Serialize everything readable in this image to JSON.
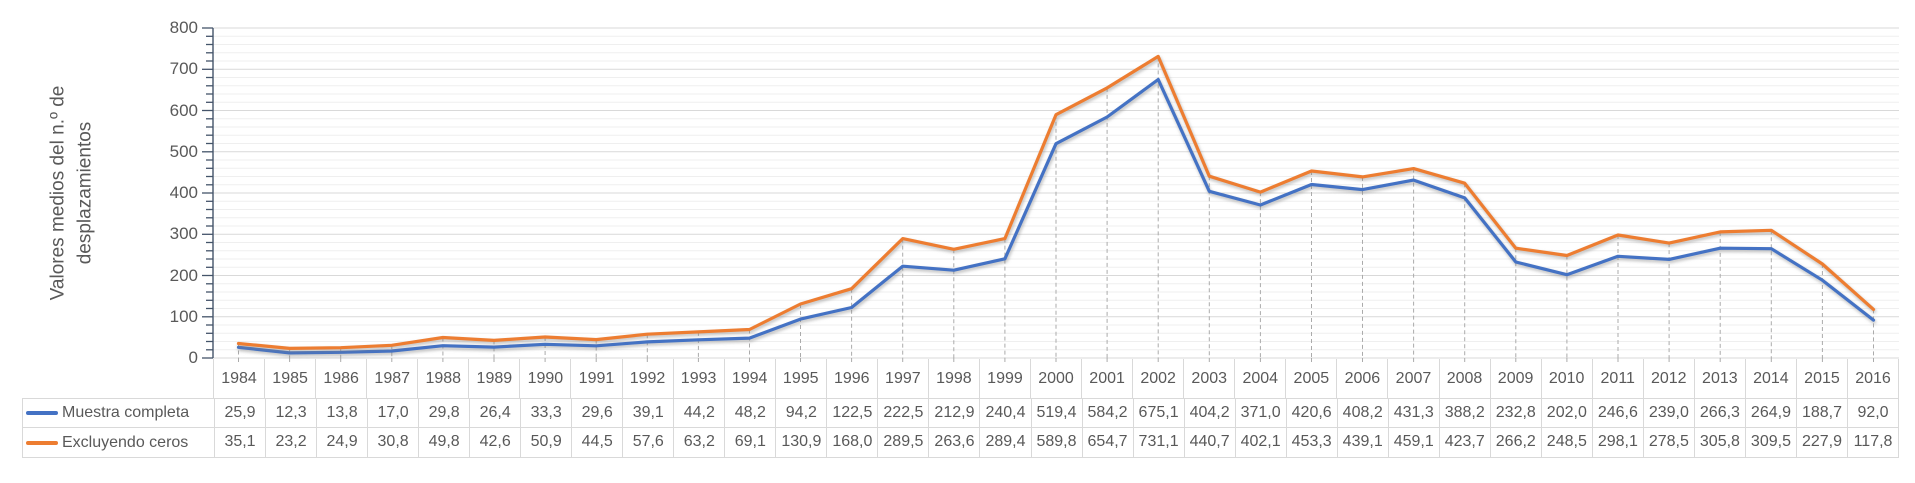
{
  "chart_data": {
    "type": "line",
    "title": "",
    "ylabel_line1": "Valores medios del n.º de",
    "ylabel_line2": "desplazamientos",
    "xlabel": "",
    "ylim": [
      0,
      800
    ],
    "y_major_step": 100,
    "y_minor_step": 20,
    "y_tick_labels": [
      "0",
      "100",
      "200",
      "300",
      "400",
      "500",
      "600",
      "700",
      "800"
    ],
    "grid": "major-and-minor-horizontal, dashed droplines per category",
    "legend_position": "table-left",
    "categories": [
      "1984",
      "1985",
      "1986",
      "1987",
      "1988",
      "1989",
      "1990",
      "1991",
      "1992",
      "1993",
      "1994",
      "1995",
      "1996",
      "1997",
      "1998",
      "1999",
      "2000",
      "2001",
      "2002",
      "2003",
      "2004",
      "2005",
      "2006",
      "2007",
      "2008",
      "2009",
      "2010",
      "2011",
      "2012",
      "2013",
      "2014",
      "2015",
      "2016"
    ],
    "series": [
      {
        "name": "Muestra completa",
        "color": "#4472C4",
        "values": [
          "25,9",
          "12,3",
          "13,8",
          "17,0",
          "29,8",
          "26,4",
          "33,3",
          "29,6",
          "39,1",
          "44,2",
          "48,2",
          "94,2",
          "122,5",
          "222,5",
          "212,9",
          "240,4",
          "519,4",
          "584,2",
          "675,1",
          "404,2",
          "371,0",
          "420,6",
          "408,2",
          "431,3",
          "388,2",
          "232,8",
          "202,0",
          "246,6",
          "239,0",
          "266,3",
          "264,9",
          "188,7",
          "92,0"
        ]
      },
      {
        "name": "Excluyendo ceros",
        "color": "#ED7D31",
        "values": [
          "35,1",
          "23,2",
          "24,9",
          "30,8",
          "49,8",
          "42,6",
          "50,9",
          "44,5",
          "57,6",
          "63,2",
          "69,1",
          "130,9",
          "168,0",
          "289,5",
          "263,6",
          "289,4",
          "589,8",
          "654,7",
          "731,1",
          "440,7",
          "402,1",
          "453,3",
          "439,1",
          "459,1",
          "423,7",
          "266,2",
          "248,5",
          "298,1",
          "278,5",
          "305,8",
          "309,5",
          "227,9",
          "117,8"
        ]
      }
    ],
    "colors": {
      "axis_line": "#44546A",
      "major_grid": "#d9d9d9",
      "minor_grid": "#efefef",
      "dropline": "#ababab",
      "text": "#595959",
      "table_border": "#d9d9d9"
    }
  }
}
